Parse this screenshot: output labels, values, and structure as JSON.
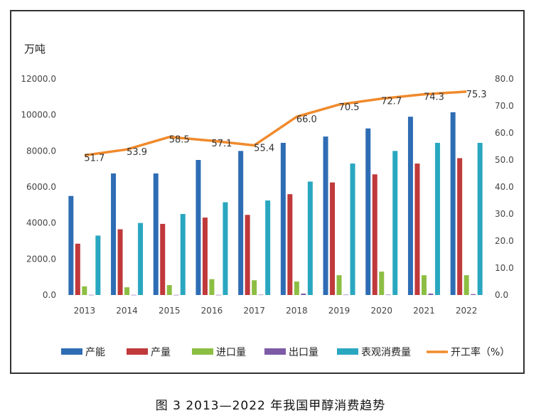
{
  "caption": "图 3  2013—2022 年我国甲醇消费趋势",
  "chart_data": {
    "type": "bar",
    "ylabel": "万吨",
    "categories": [
      "2013",
      "2014",
      "2015",
      "2016",
      "2017",
      "2018",
      "2019",
      "2020",
      "2021",
      "2022"
    ],
    "ylim": [
      0,
      12000
    ],
    "y_ticks": [
      "0.0",
      "2000.0",
      "4000.0",
      "6000.0",
      "8000.0",
      "10000.0",
      "12000.0"
    ],
    "y2lim": [
      0,
      80
    ],
    "y2_ticks": [
      "0.0",
      "10.0",
      "20.0",
      "30.0",
      "40.0",
      "50.0",
      "60.0",
      "70.0",
      "80.0"
    ],
    "grid": false,
    "legend_position": "bottom",
    "series": [
      {
        "name": "产能",
        "kind": "bar",
        "color": "#2E6DB4",
        "values": [
          5500,
          6750,
          6750,
          7500,
          8000,
          8450,
          8800,
          9250,
          9900,
          10150
        ]
      },
      {
        "name": "产量",
        "kind": "bar",
        "color": "#C0393B",
        "values": [
          2850,
          3650,
          3950,
          4300,
          4450,
          5600,
          6250,
          6700,
          7300,
          7600
        ]
      },
      {
        "name": "进口量",
        "kind": "bar",
        "color": "#8DBE44",
        "values": [
          480,
          430,
          550,
          880,
          820,
          750,
          1100,
          1300,
          1100,
          1100
        ]
      },
      {
        "name": "出口量",
        "kind": "bar",
        "color": "#7D5BA6",
        "values": [
          10,
          10,
          10,
          10,
          20,
          80,
          20,
          20,
          80,
          50
        ]
      },
      {
        "name": "表观消费量",
        "kind": "bar",
        "color": "#2AA7C0",
        "values": [
          3300,
          4000,
          4500,
          5150,
          5250,
          6300,
          7300,
          8000,
          8450,
          8450
        ]
      },
      {
        "name": "开工率（%）",
        "kind": "line",
        "axis": "right",
        "color": "#F08A2C",
        "values": [
          51.7,
          53.9,
          58.5,
          57.1,
          55.4,
          66.0,
          70.5,
          72.7,
          74.3,
          75.3
        ],
        "labels": [
          "51.7",
          "53.9",
          "58.5",
          "57.1",
          "55.4",
          "66.0",
          "70.5",
          "72.7",
          "74.3",
          "75.3"
        ]
      }
    ]
  }
}
